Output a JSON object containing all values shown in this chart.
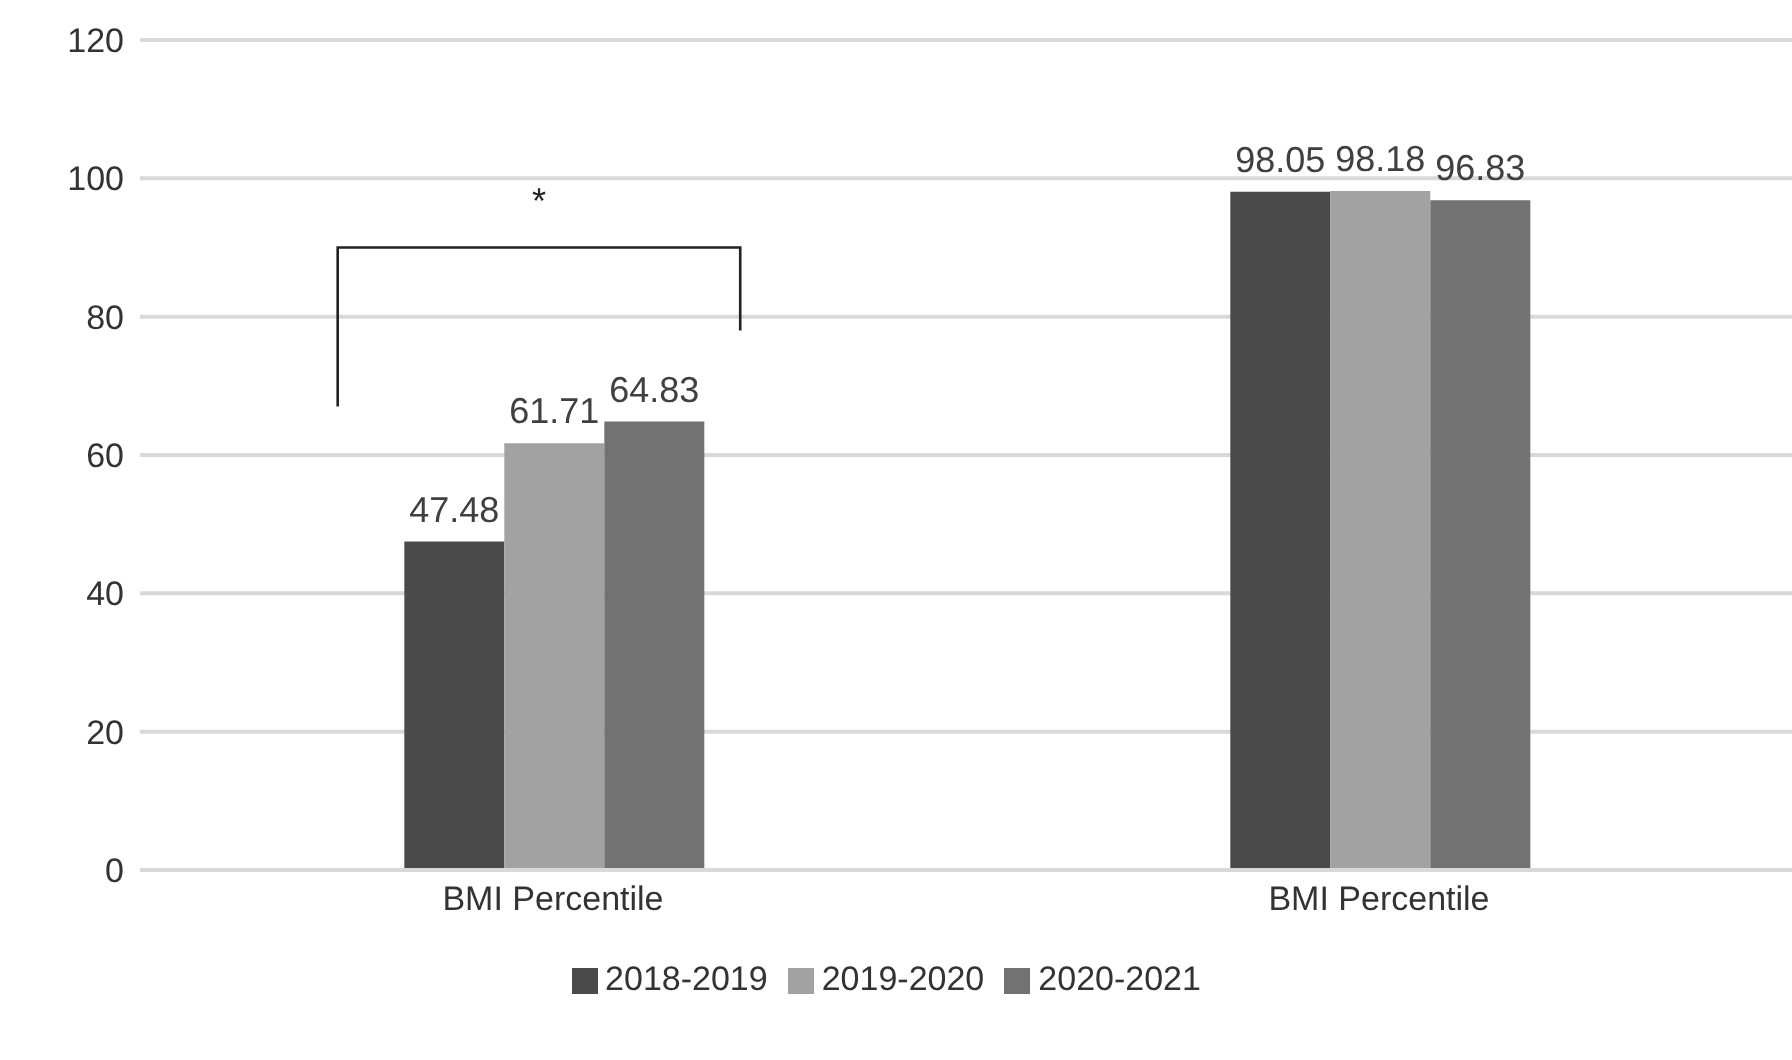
{
  "chart_data": {
    "type": "bar",
    "categories": [
      "BMI Percentile",
      "BMI Percentile"
    ],
    "series": [
      {
        "name": "2018-2019",
        "color": "#4a4a4a",
        "values": [
          47.48,
          98.05
        ]
      },
      {
        "name": "2019-2020",
        "color": "#a2a2a2",
        "values": [
          61.71,
          98.18
        ]
      },
      {
        "name": "2020-2021",
        "color": "#727272",
        "values": [
          64.83,
          96.83
        ]
      }
    ],
    "ylim": [
      0,
      120
    ],
    "yticks": [
      0,
      20,
      40,
      60,
      80,
      100,
      120
    ],
    "grid": "y",
    "legend": "bottom",
    "data_labels": true,
    "annotations": [
      "*"
    ]
  }
}
